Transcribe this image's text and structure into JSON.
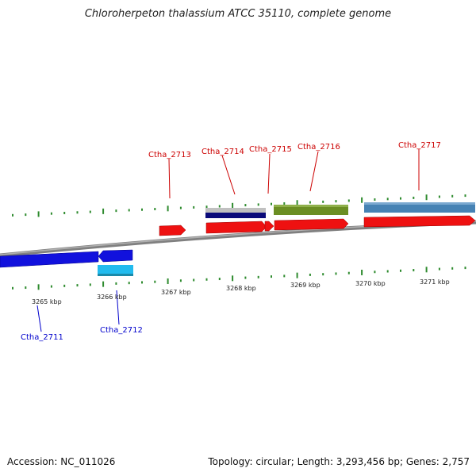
{
  "title": "Chloroherpeton thalassium ATCC 35110, complete genome",
  "footer": {
    "accession": "Accession: NC_011026",
    "summary": "Topology: circular; Length: 3,293,456 bp; Genes: 2,757"
  },
  "colors": {
    "backbone": "#808080",
    "tick": "#2e8b2e",
    "label_plus": "#cc0000",
    "label_minus": "#0000cc",
    "cds": "#ee1111",
    "blue": "#1111dd",
    "cyan": "#22bbee",
    "navy": "#0a0a7a",
    "grey": "#c0c0c0",
    "olive": "#6b8e23",
    "steel": "#4682b4"
  },
  "scale": {
    "labels": [
      {
        "name": "kbp-3265",
        "text": "3265 kbp"
      },
      {
        "name": "kbp-3266",
        "text": "3266 kbp"
      },
      {
        "name": "kbp-3267",
        "text": "3267 kbp"
      },
      {
        "name": "kbp-3268",
        "text": "3268 kbp"
      },
      {
        "name": "kbp-3269",
        "text": "3269 kbp"
      },
      {
        "name": "kbp-3270",
        "text": "3270 kbp"
      },
      {
        "name": "kbp-3271",
        "text": "3271 kbp"
      }
    ]
  },
  "gene_labels": [
    {
      "name": "label-ctha-2711",
      "text": "Ctha_2711",
      "strand": "minus"
    },
    {
      "name": "label-ctha-2712",
      "text": "Ctha_2712",
      "strand": "minus"
    },
    {
      "name": "label-ctha-2713",
      "text": "Ctha_2713",
      "strand": "plus"
    },
    {
      "name": "label-ctha-2714",
      "text": "Ctha_2714",
      "strand": "plus"
    },
    {
      "name": "label-ctha-2715",
      "text": "Ctha_2715",
      "strand": "plus"
    },
    {
      "name": "label-ctha-2716",
      "text": "Ctha_2716",
      "strand": "plus"
    },
    {
      "name": "label-ctha-2717",
      "text": "Ctha_2717",
      "strand": "plus"
    }
  ]
}
